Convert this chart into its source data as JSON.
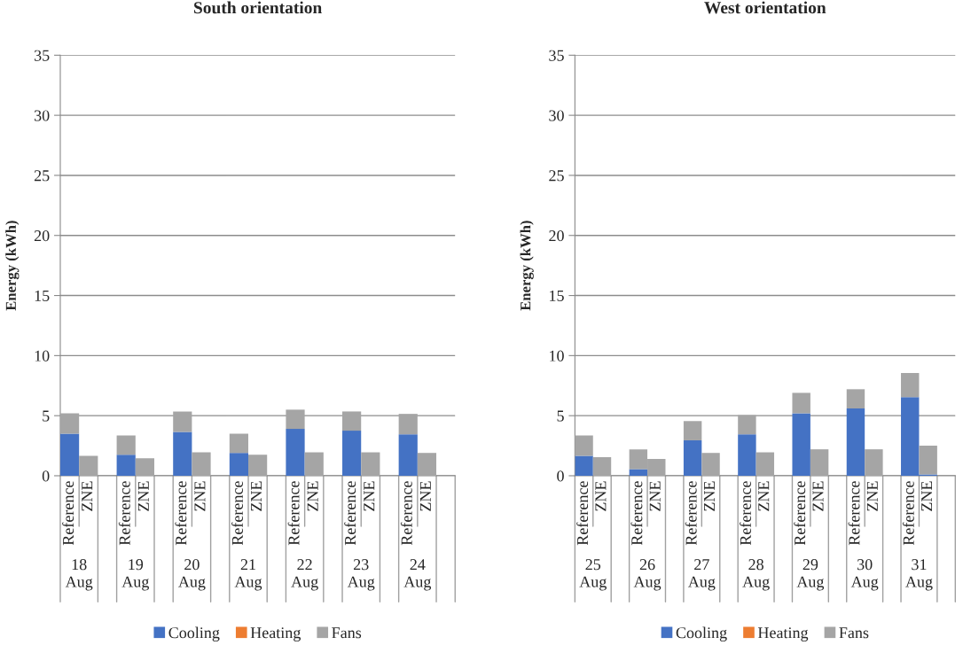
{
  "chart_data": [
    {
      "type": "bar",
      "title": "South orientation",
      "ylabel": "Energy (kWh)",
      "stacked": true,
      "categories": [
        "Reference",
        "ZNE",
        "Reference",
        "ZNE",
        "Reference",
        "ZNE",
        "Reference",
        "ZNE",
        "Reference",
        "ZNE",
        "Reference",
        "ZNE",
        "Reference",
        "ZNE"
      ],
      "annotations": [
        "18 Aug",
        "19 Aug",
        "20 Aug",
        "21 Aug",
        "22 Aug",
        "23 Aug",
        "24 Aug"
      ],
      "series": [
        {
          "name": "Cooling",
          "color": "#4472c4",
          "values": [
            3.5,
            0,
            1.75,
            0,
            3.65,
            0,
            1.9,
            0,
            3.9,
            0,
            3.75,
            0,
            3.45,
            0
          ]
        },
        {
          "name": "Heating",
          "color": "#ed7d31",
          "values": [
            0,
            0,
            0,
            0,
            0,
            0,
            0,
            0,
            0,
            0,
            0,
            0,
            0,
            0
          ]
        },
        {
          "name": "Fans",
          "color": "#a5a5a5",
          "values": [
            1.7,
            1.65,
            1.6,
            1.45,
            1.7,
            1.95,
            1.6,
            1.75,
            1.6,
            1.95,
            1.6,
            1.95,
            1.7,
            1.9
          ]
        }
      ],
      "ylim": [
        0,
        35
      ],
      "yticks": [
        0,
        5,
        10,
        15,
        20,
        25,
        30,
        35
      ],
      "grid": "y",
      "legend": "bottom"
    },
    {
      "type": "bar",
      "title": "West orientation",
      "ylabel": "Energy (kWh)",
      "stacked": true,
      "categories": [
        "Reference",
        "ZNE",
        "Reference",
        "ZNE",
        "Reference",
        "ZNE",
        "Reference",
        "ZNE",
        "Reference",
        "ZNE",
        "Reference",
        "ZNE",
        "Reference",
        "ZNE"
      ],
      "annotations": [
        "25 Aug",
        "26 Aug",
        "27 Aug",
        "28 Aug",
        "29 Aug",
        "30 Aug",
        "31 Aug"
      ],
      "series": [
        {
          "name": "Cooling",
          "color": "#4472c4",
          "values": [
            1.65,
            0,
            0.55,
            0,
            2.95,
            0,
            3.45,
            0,
            5.2,
            0,
            5.6,
            0,
            6.55,
            0.1
          ]
        },
        {
          "name": "Heating",
          "color": "#ed7d31",
          "values": [
            0,
            0,
            0,
            0,
            0,
            0,
            0,
            0,
            0,
            0,
            0,
            0,
            0,
            0
          ]
        },
        {
          "name": "Fans",
          "color": "#a5a5a5",
          "values": [
            1.7,
            1.55,
            1.65,
            1.4,
            1.6,
            1.9,
            1.6,
            1.95,
            1.7,
            2.2,
            1.6,
            2.2,
            2.0,
            2.4
          ]
        }
      ],
      "ylim": [
        0,
        35
      ],
      "yticks": [
        0,
        5,
        10,
        15,
        20,
        25,
        30,
        35
      ],
      "grid": "y",
      "legend": "bottom"
    }
  ]
}
